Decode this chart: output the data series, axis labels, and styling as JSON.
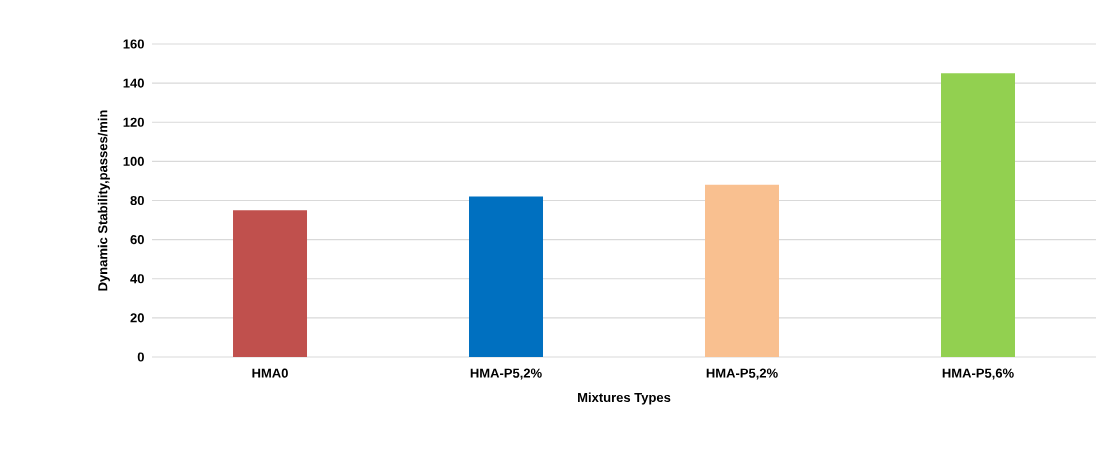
{
  "chart_data": {
    "type": "bar",
    "xlabel": "Mixtures Types",
    "ylabel": "Dynamic Stability,passes/min",
    "categories": [
      "HMA0",
      "HMA-P5,2%",
      "HMA-P5,2%",
      "HMA-P5,6%"
    ],
    "values": [
      75,
      82,
      88,
      145
    ],
    "colors": [
      "#c0504d",
      "#0070c0",
      "#f9c090",
      "#92d050"
    ],
    "ylim": [
      0,
      160
    ],
    "yticks": [
      0,
      20,
      40,
      60,
      80,
      100,
      120,
      140,
      160
    ],
    "grid": "y"
  }
}
